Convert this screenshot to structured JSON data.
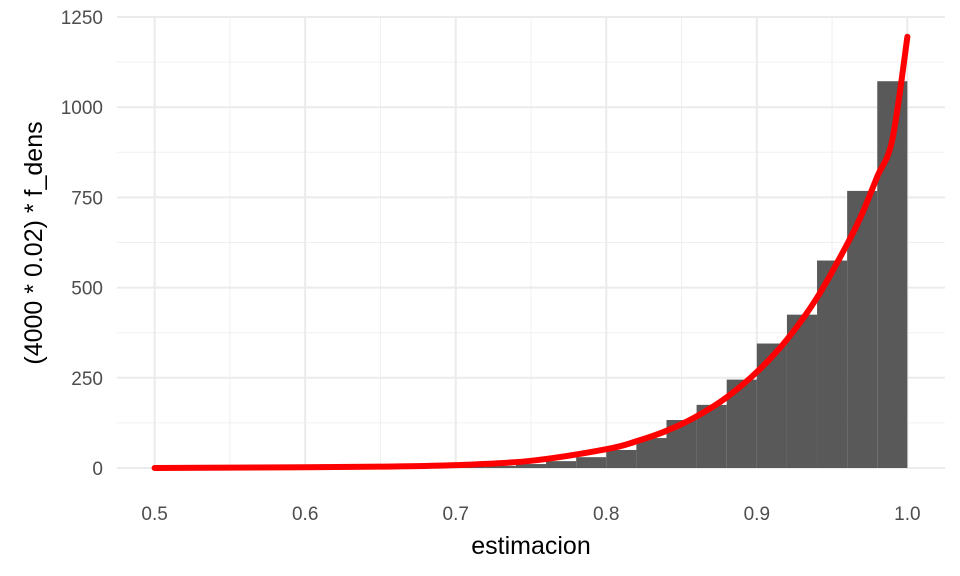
{
  "chart_data": {
    "type": "bar",
    "xlabel": "estimacion",
    "ylabel": "(4000 * 0.02) * f_dens",
    "xlim": [
      0.475,
      1.025
    ],
    "ylim": [
      0,
      1250
    ],
    "x_ticks": [
      "0.5",
      "0.6",
      "0.7",
      "0.8",
      "0.9",
      "1.0"
    ],
    "x_tick_values": [
      0.5,
      0.6,
      0.7,
      0.8,
      0.9,
      1.0
    ],
    "y_ticks": [
      "0",
      "250",
      "500",
      "750",
      "1000",
      "1250"
    ],
    "y_tick_values": [
      0,
      250,
      500,
      750,
      1000,
      1250
    ],
    "grid": true,
    "histogram": {
      "bin_width": 0.02,
      "bins": [
        {
          "x0": 0.7,
          "x1": 0.72,
          "value": 3
        },
        {
          "x0": 0.72,
          "x1": 0.74,
          "value": 6
        },
        {
          "x0": 0.74,
          "x1": 0.76,
          "value": 11
        },
        {
          "x0": 0.76,
          "x1": 0.78,
          "value": 19
        },
        {
          "x0": 0.78,
          "x1": 0.8,
          "value": 30
        },
        {
          "x0": 0.8,
          "x1": 0.82,
          "value": 50
        },
        {
          "x0": 0.82,
          "x1": 0.84,
          "value": 83
        },
        {
          "x0": 0.84,
          "x1": 0.86,
          "value": 133
        },
        {
          "x0": 0.86,
          "x1": 0.88,
          "value": 175
        },
        {
          "x0": 0.88,
          "x1": 0.9,
          "value": 245
        },
        {
          "x0": 0.9,
          "x1": 0.92,
          "value": 345
        },
        {
          "x0": 0.92,
          "x1": 0.94,
          "value": 425
        },
        {
          "x0": 0.94,
          "x1": 0.96,
          "value": 575
        },
        {
          "x0": 0.96,
          "x1": 0.98,
          "value": 768
        },
        {
          "x0": 0.98,
          "x1": 1.0,
          "value": 1072
        }
      ],
      "color": "#595959"
    },
    "curve": {
      "type": "line",
      "color": "#ff0000",
      "x": [
        0.5,
        0.55,
        0.6,
        0.65,
        0.7,
        0.75,
        0.8,
        0.82,
        0.84,
        0.86,
        0.88,
        0.9,
        0.92,
        0.94,
        0.96,
        0.97,
        0.98,
        0.99,
        1.0
      ],
      "y": [
        0,
        1,
        2,
        4,
        8,
        20,
        52,
        74,
        103,
        143,
        196,
        266,
        356,
        472,
        620,
        705,
        808,
        910,
        1195
      ]
    }
  }
}
